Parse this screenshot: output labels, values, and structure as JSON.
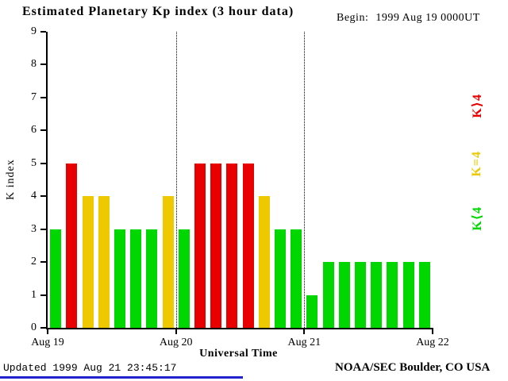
{
  "page": {
    "title": "Estimated Planetary Kp index (3 hour data)",
    "begin_label": "Begin:",
    "begin_value": "1999 Aug 19 0000UT",
    "updated_text": "Updated 1999 Aug 21 23:45:17",
    "credit_text": "NOAA/SEC Boulder, CO USA"
  },
  "chart_data": {
    "type": "bar",
    "title": "Estimated Planetary Kp index (3 hour data)",
    "begin": "1999 Aug 19 0000UT",
    "xlabel": "Universal Time",
    "ylabel": "K index",
    "ylim": [
      0,
      9
    ],
    "yticks": [
      0,
      1,
      2,
      3,
      4,
      5,
      6,
      7,
      8,
      9
    ],
    "x_tick_labels": [
      "Aug 19",
      "Aug 20",
      "Aug 21",
      "Aug 22"
    ],
    "interval_hours": 3,
    "days": [
      {
        "date": "Aug 19",
        "values": [
          3,
          5,
          4,
          4,
          3,
          3,
          3,
          4
        ]
      },
      {
        "date": "Aug 20",
        "values": [
          3,
          5,
          5,
          5,
          5,
          4,
          3,
          3
        ]
      },
      {
        "date": "Aug 21",
        "values": [
          1,
          2,
          2,
          2,
          2,
          2,
          2,
          2
        ]
      }
    ],
    "colors": {
      "k_below_4": "#00d700",
      "k_equal_4": "#eec900",
      "k_above_4": "#e80000"
    },
    "legend": [
      {
        "label": "K⟩4",
        "color": "#e80000"
      },
      {
        "label": "K=4",
        "color": "#eec900"
      },
      {
        "label": "K⟨4",
        "color": "#00d700"
      }
    ],
    "day_boundary_lines": [
      "Aug 20",
      "Aug 21"
    ],
    "grid": "dotted-day-boundaries",
    "legend_position": "right"
  },
  "footer": {
    "divider_color": "#2222cc"
  }
}
